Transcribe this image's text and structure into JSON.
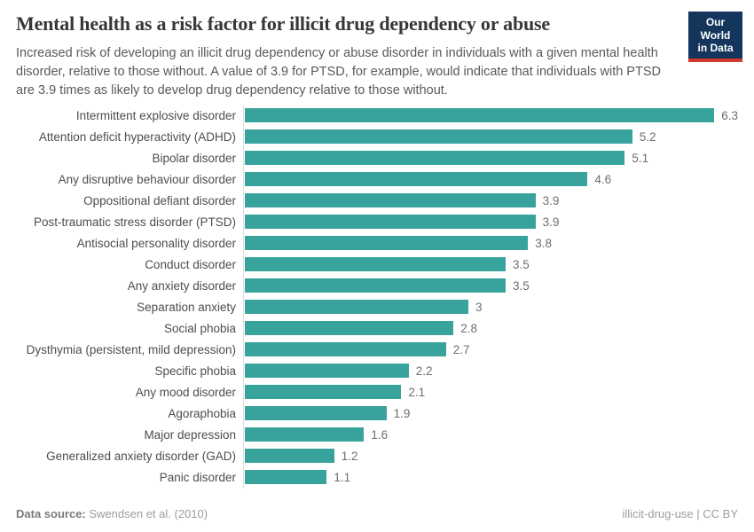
{
  "header": {
    "title": "Mental health as a risk factor for illicit drug dependency or abuse",
    "subtitle": "Increased risk of developing an illicit drug dependency or abuse disorder in individuals with a given mental health disorder, relative to those without. A value of 3.9 for PTSD, for example, would indicate that individuals with PTSD are 3.9 times as likely to develop drug dependency relative to those without.",
    "logo": {
      "line1": "Our World",
      "line2": "in Data"
    }
  },
  "chart_data": {
    "type": "bar",
    "orientation": "horizontal",
    "title": "Mental health as a risk factor for illicit drug dependency or abuse",
    "categories": [
      "Intermittent explosive disorder",
      "Attention deficit hyperactivity (ADHD)",
      "Bipolar disorder",
      "Any disruptive behaviour disorder",
      "Oppositional defiant disorder",
      "Post-traumatic stress disorder (PTSD)",
      "Antisocial personality disorder",
      "Conduct disorder",
      "Any anxiety disorder",
      "Separation anxiety",
      "Social phobia",
      "Dysthymia (persistent, mild depression)",
      "Specific phobia",
      "Any mood disorder",
      "Agoraphobia",
      "Major depression",
      "Generalized anxiety disorder (GAD)",
      "Panic disorder"
    ],
    "values": [
      6.3,
      5.2,
      5.1,
      4.6,
      3.9,
      3.9,
      3.8,
      3.5,
      3.5,
      3,
      2.8,
      2.7,
      2.2,
      2.1,
      1.9,
      1.6,
      1.2,
      1.1
    ],
    "value_labels": [
      "6.3",
      "5.2",
      "5.1",
      "4.6",
      "3.9",
      "3.9",
      "3.8",
      "3.5",
      "3.5",
      "3",
      "2.8",
      "2.7",
      "2.2",
      "2.1",
      "1.9",
      "1.6",
      "1.2",
      "1.1"
    ],
    "xlim": [
      0,
      6.6
    ],
    "grid": false,
    "legend": "none",
    "bar_color": "#38a39c"
  },
  "footer": {
    "datasource_label": "Data source:",
    "datasource_value": "Swendsen et al. (2010)",
    "note_right": "illicit-drug-use | CC BY"
  },
  "colors": {
    "bar": "#38a39c",
    "axis_line": "#dedede",
    "logo_bg": "#14355c",
    "logo_stripe": "#d23a2e"
  }
}
